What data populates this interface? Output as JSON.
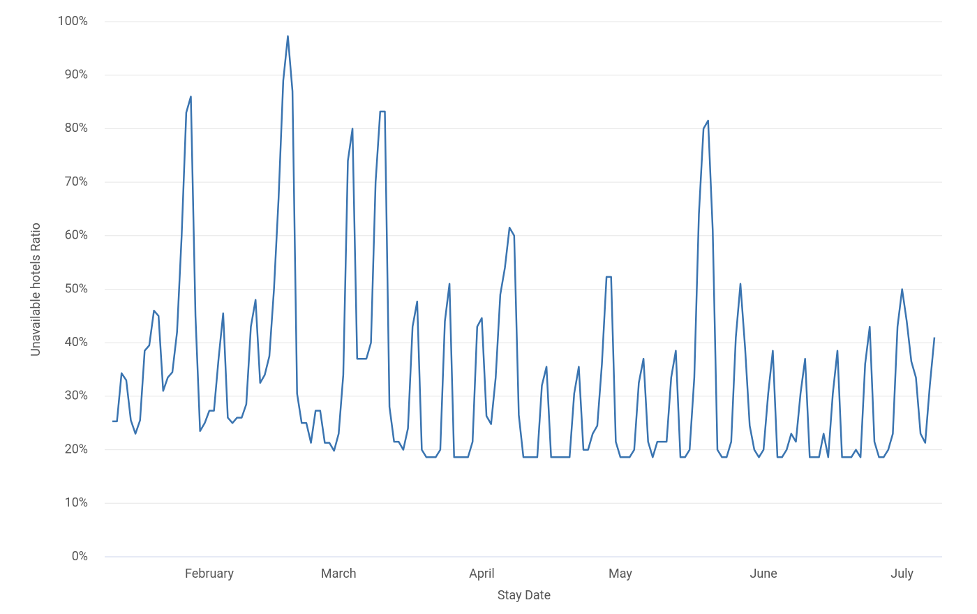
{
  "chart_data": {
    "type": "line",
    "xlabel": "Stay Date",
    "ylabel": "Unavailable hotels Ratio",
    "categories": [
      null,
      null,
      null,
      null,
      null,
      null,
      null,
      null,
      null,
      null,
      null,
      null,
      null,
      null,
      null,
      null,
      null,
      null,
      null,
      null,
      null,
      "February",
      null,
      null,
      null,
      null,
      null,
      null,
      null,
      null,
      null,
      null,
      null,
      null,
      null,
      null,
      null,
      null,
      null,
      null,
      null,
      null,
      null,
      null,
      null,
      null,
      null,
      null,
      null,
      "March",
      null,
      null,
      null,
      null,
      null,
      null,
      null,
      null,
      null,
      null,
      null,
      null,
      null,
      null,
      null,
      null,
      null,
      null,
      null,
      null,
      null,
      null,
      null,
      null,
      null,
      null,
      null,
      null,
      null,
      null,
      "April",
      null,
      null,
      null,
      null,
      null,
      null,
      null,
      null,
      null,
      null,
      null,
      null,
      null,
      null,
      null,
      null,
      null,
      null,
      null,
      null,
      null,
      null,
      null,
      null,
      null,
      null,
      null,
      null,
      null,
      "May",
      null,
      null,
      null,
      null,
      null,
      null,
      null,
      null,
      null,
      null,
      null,
      null,
      null,
      null,
      null,
      null,
      null,
      null,
      null,
      null,
      null,
      null,
      null,
      null,
      null,
      null,
      null,
      null,
      null,
      null,
      "June",
      null,
      null,
      null,
      null,
      null,
      null,
      null,
      null,
      null,
      null,
      null,
      null,
      null,
      null,
      null,
      null,
      null,
      null,
      null,
      null,
      null,
      null,
      null,
      null,
      null,
      null,
      null,
      null,
      null,
      "July",
      null,
      null,
      null,
      null,
      null,
      null,
      null
    ],
    "series": [
      {
        "name": "Unavailable hotels Ratio",
        "color": "#3a74b0",
        "values": [
          25.3,
          25.3,
          34.3,
          33,
          25.5,
          23,
          25.5,
          38.5,
          39.5,
          46,
          45,
          31,
          33.5,
          34.5,
          42,
          60,
          83,
          86,
          45,
          23.5,
          25,
          27.3,
          27.3,
          37,
          45.5,
          26,
          25,
          26,
          26,
          28.5,
          43,
          48,
          32.5,
          34,
          37.5,
          50,
          67,
          89,
          97.3,
          87,
          30.5,
          25,
          25,
          21.3,
          27.3,
          27.3,
          21.3,
          21.3,
          19.8,
          23,
          34,
          74,
          80,
          37,
          37,
          37,
          40,
          70,
          83.2,
          83.2,
          28,
          21.5,
          21.5,
          20,
          24,
          43,
          47.7,
          20,
          18.6,
          18.6,
          18.6,
          20,
          44,
          51,
          18.6,
          18.6,
          18.6,
          18.6,
          21.5,
          43,
          44.6,
          26.3,
          24.8,
          33.5,
          49,
          54,
          61.5,
          60,
          26.5,
          18.6,
          18.6,
          18.6,
          18.6,
          32,
          35.5,
          18.6,
          18.6,
          18.6,
          18.6,
          18.6,
          30.5,
          35.5,
          20,
          20,
          23,
          24.5,
          36,
          52.3,
          52.3,
          21.5,
          18.6,
          18.6,
          18.6,
          20,
          32.5,
          37,
          21.5,
          18.6,
          21.5,
          21.5,
          21.5,
          33.5,
          38.5,
          18.6,
          18.6,
          20,
          33.5,
          64,
          80,
          81.5,
          61,
          20,
          18.6,
          18.6,
          21.5,
          41,
          51,
          39,
          24.5,
          20,
          18.6,
          20,
          30.5,
          38.5,
          18.6,
          18.6,
          20,
          23,
          21.5,
          30.5,
          37,
          18.6,
          18.6,
          18.6,
          23,
          18.6,
          30.5,
          38.5,
          18.6,
          18.6,
          18.6,
          20,
          18.6,
          36,
          43,
          21.5,
          18.6,
          18.6,
          20,
          23,
          43,
          50,
          44,
          36.5,
          33.5,
          23,
          21.3,
          32,
          41
        ]
      }
    ],
    "ylim": [
      0,
      100
    ],
    "yticks": [
      {
        "value": 0,
        "label": "0%"
      },
      {
        "value": 10,
        "label": "10%"
      },
      {
        "value": 20,
        "label": "20%"
      },
      {
        "value": 30,
        "label": "30%"
      },
      {
        "value": 40,
        "label": "40%"
      },
      {
        "value": 50,
        "label": "50%"
      },
      {
        "value": 60,
        "label": "60%"
      },
      {
        "value": 70,
        "label": "70%"
      },
      {
        "value": 80,
        "label": "80%"
      },
      {
        "value": 90,
        "label": "90%"
      },
      {
        "value": 100,
        "label": "100%"
      }
    ],
    "grid": true
  }
}
